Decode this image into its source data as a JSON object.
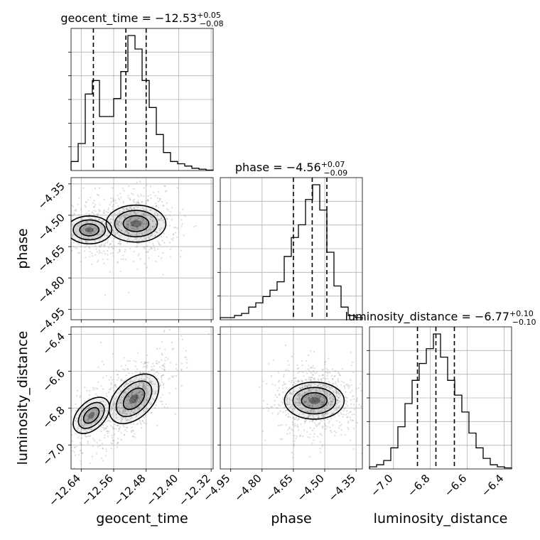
{
  "chart_data": {
    "type": "corner",
    "parameters": [
      "geocent_time",
      "phase",
      "luminosity_distance"
    ],
    "titles": [
      {
        "param": "geocent_time",
        "prefix": "geocent_time = −12.53",
        "plus": "+0.05",
        "minus": "−0.08"
      },
      {
        "param": "phase",
        "prefix": "phase = −4.56",
        "plus": "+0.07",
        "minus": "−0.09"
      },
      {
        "param": "luminosity_distance",
        "prefix": "luminosity_distance = −6.77",
        "plus": "+0.10",
        "minus": "−0.10"
      }
    ],
    "ranges": {
      "geocent_time": [
        -12.665,
        -12.315
      ],
      "phase": [
        -5.0,
        -4.32
      ],
      "luminosity_distance": [
        -7.13,
        -6.36
      ]
    },
    "ticks": {
      "geocent_time": {
        "values": [
          -12.64,
          -12.56,
          -12.48,
          -12.4,
          -12.32
        ],
        "labels": [
          "−12.64",
          "−12.56",
          "−12.48",
          "−12.40",
          "−12.32"
        ]
      },
      "phase": {
        "values": [
          -4.95,
          -4.8,
          -4.65,
          -4.5,
          -4.35
        ],
        "labels": [
          "−4.95",
          "−4.80",
          "−4.65",
          "−4.50",
          "−4.35"
        ]
      },
      "luminosity_distance": {
        "values": [
          -7.0,
          -6.8,
          -6.6,
          -6.4
        ],
        "labels": [
          "−7.0",
          "−6.8",
          "−6.6",
          "−6.4"
        ]
      }
    },
    "quantiles": {
      "geocent_time": [
        -12.61,
        -12.53,
        -12.48
      ],
      "phase": [
        -4.65,
        -4.56,
        -4.49
      ],
      "luminosity_distance": [
        -6.87,
        -6.77,
        -6.67
      ]
    },
    "histograms": {
      "geocent_time": {
        "edges": [
          -12.665,
          -12.6475,
          -12.63,
          -12.6125,
          -12.595,
          -12.5775,
          -12.56,
          -12.5425,
          -12.525,
          -12.5075,
          -12.49,
          -12.4725,
          -12.455,
          -12.4375,
          -12.42,
          -12.4025,
          -12.385,
          -12.3675,
          -12.35,
          -12.3325,
          -12.315
        ],
        "counts": [
          2,
          6,
          17,
          20,
          12,
          12,
          16,
          22,
          30,
          27,
          20,
          14,
          8,
          4,
          2,
          1.5,
          1,
          0.5,
          0.3,
          0.1
        ]
      },
      "phase": {
        "edges": [
          -5.0,
          -4.966,
          -4.932,
          -4.898,
          -4.864,
          -4.83,
          -4.796,
          -4.762,
          -4.728,
          -4.694,
          -4.66,
          -4.626,
          -4.592,
          -4.558,
          -4.524,
          -4.49,
          -4.456,
          -4.422,
          -4.388,
          -4.354,
          -4.32
        ],
        "counts": [
          1,
          1,
          2,
          3,
          6,
          8,
          11,
          14,
          18,
          30,
          39,
          45,
          57,
          64,
          52,
          32,
          16,
          6,
          2,
          1
        ]
      },
      "luminosity_distance": {
        "edges": [
          -7.13,
          -7.0915,
          -7.053,
          -7.0145,
          -6.976,
          -6.9375,
          -6.899,
          -6.8605,
          -6.822,
          -6.7835,
          -6.745,
          -6.7065,
          -6.668,
          -6.6295,
          -6.591,
          -6.5525,
          -6.514,
          -6.4755,
          -6.437,
          -6.3985,
          -6.36
        ],
        "counts": [
          1,
          2,
          4,
          10,
          20,
          31,
          42,
          50,
          57,
          64,
          53,
          42,
          35,
          27,
          17,
          10,
          5,
          2,
          1,
          0.5
        ]
      }
    },
    "density_peaks": {
      "geocent_time_phase": [
        {
          "geocent_time": -12.505,
          "phase": -4.54,
          "weight": 1.0
        },
        {
          "geocent_time": -12.62,
          "phase": -4.57,
          "weight": 0.45
        }
      ],
      "geocent_time_luminosity_distance": [
        {
          "geocent_time": -12.51,
          "luminosity_distance": -6.75,
          "weight": 1.0
        },
        {
          "geocent_time": -12.615,
          "luminosity_distance": -6.84,
          "weight": 0.4
        }
      ],
      "phase_luminosity_distance": [
        {
          "phase": -4.55,
          "luminosity_distance": -6.76,
          "weight": 1.0
        }
      ]
    },
    "grid": true,
    "xlabel": "",
    "ylabel": ""
  }
}
